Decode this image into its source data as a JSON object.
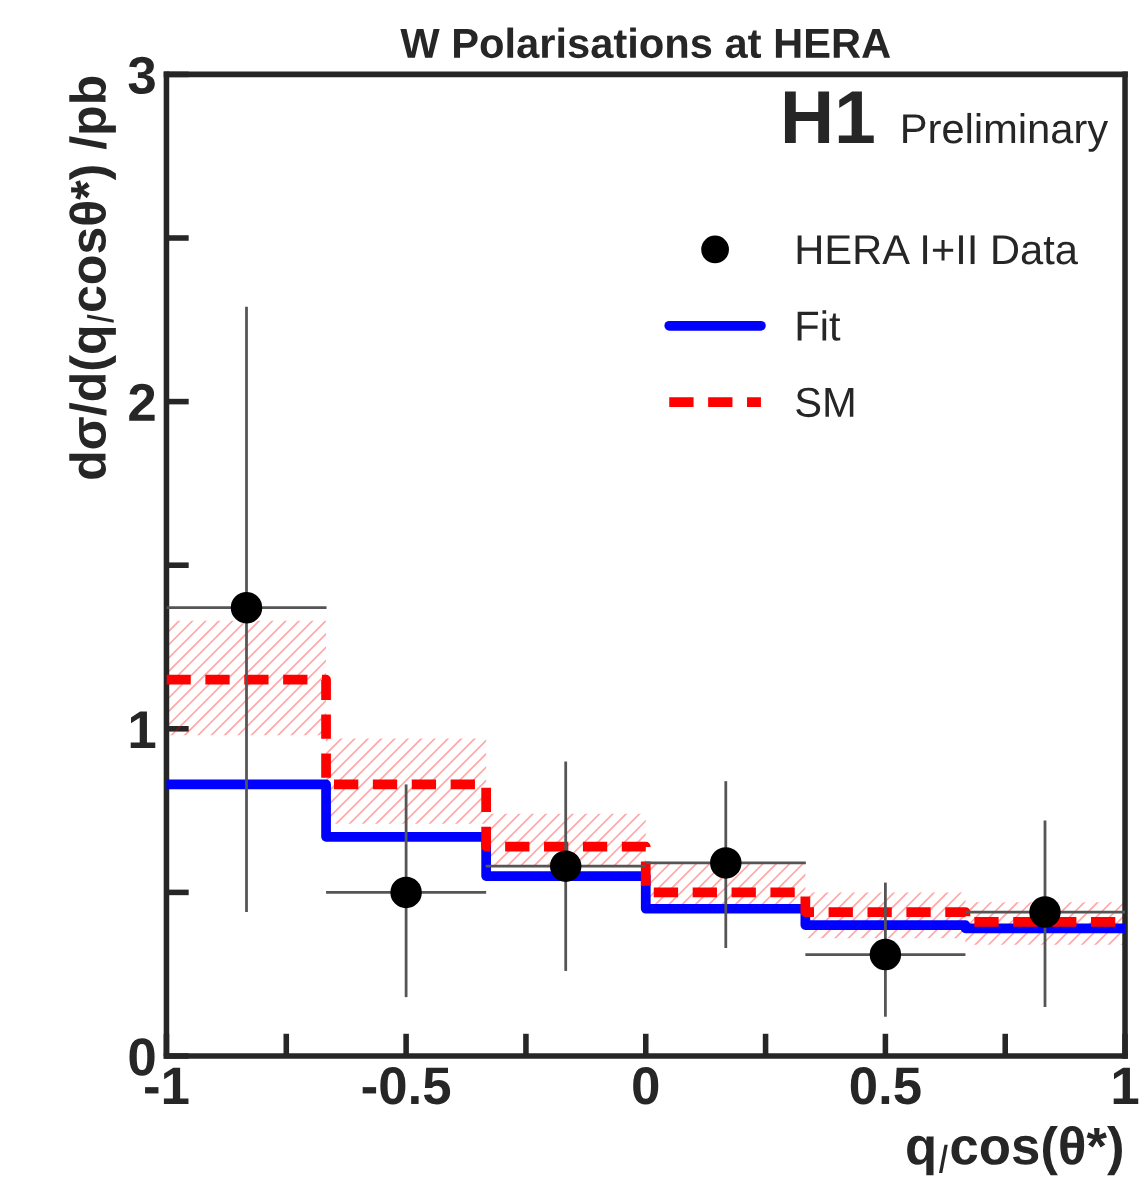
{
  "chart_data": {
    "type": "scatter",
    "title": "W Polarisations at HERA",
    "xlabel": "q$_{l}$cos(θ*)",
    "ylabel": "dσ/d(q$_{l}$cosθ*) /pb",
    "annotations": [
      "H1",
      "Preliminary"
    ],
    "xlim": [
      -1,
      1
    ],
    "ylim": [
      0,
      3
    ],
    "xticks": [
      -1,
      {
        "value": -0.75,
        "label": null
      },
      -0.5,
      {
        "value": -0.25,
        "label": null
      },
      0,
      {
        "value": 0.25,
        "label": null
      },
      0.5,
      {
        "value": 0.75,
        "label": null
      },
      1
    ],
    "yticks": [
      0,
      {
        "value": 0.5,
        "label": null
      },
      1,
      {
        "value": 1.5,
        "label": null
      },
      2,
      {
        "value": 2.5,
        "label": null
      },
      3
    ],
    "grid": false,
    "legend": "right",
    "series": [
      {
        "name": "HERA I+II Data",
        "color": "#000000",
        "marker": "circle",
        "x": [
          -0.833,
          -0.5,
          -0.167,
          0.167,
          0.5,
          0.833
        ],
        "values": [
          1.37,
          0.5,
          0.58,
          0.59,
          0.31,
          0.44
        ],
        "errors": [
          [
            0.44,
            2.29
          ],
          [
            0.18,
            0.83
          ],
          [
            0.26,
            0.9
          ],
          [
            0.33,
            0.84
          ],
          [
            0.12,
            0.53
          ],
          [
            0.15,
            0.72
          ]
        ],
        "xerrors": [
          0.167,
          0.167,
          0.167,
          0.167,
          0.167,
          0.167
        ]
      },
      {
        "name": "Fit",
        "type": "step",
        "color": "#0000ff",
        "line_style": "solid",
        "x": [
          -1,
          -0.667,
          -0.333,
          0,
          0.333,
          0.667,
          1
        ],
        "values": [
          0.83,
          0.67,
          0.55,
          0.45,
          0.4,
          0.39,
          0.39
        ]
      },
      {
        "name": "SM",
        "type": "step",
        "color": "#ff0000",
        "line_style": "dashed",
        "x": [
          -1,
          -0.667,
          -0.333,
          0,
          0.333,
          0.667,
          1
        ],
        "values": [
          1.15,
          0.83,
          0.64,
          0.5,
          0.44,
          0.41,
          0.41
        ],
        "lower": [
          0.98,
          0.71,
          0.58,
          0.44,
          0.36,
          0.34,
          0.34
        ],
        "upper": [
          1.33,
          0.97,
          0.74,
          0.59,
          0.5,
          0.47,
          0.47
        ]
      }
    ]
  }
}
